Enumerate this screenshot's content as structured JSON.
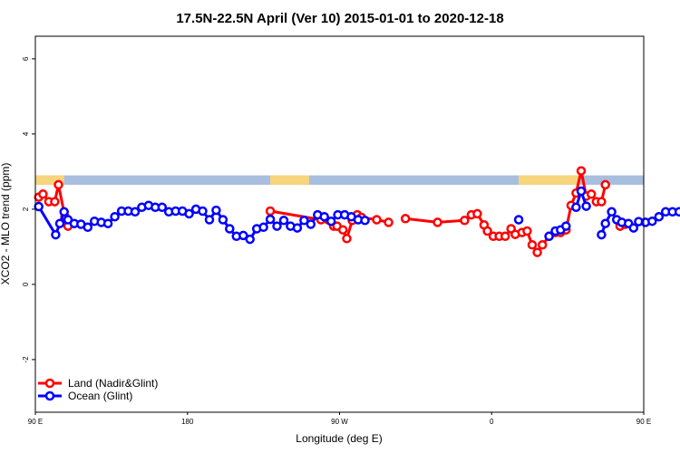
{
  "chart_data": {
    "type": "line",
    "title": "17.5N-22.5N April (Ver 10)   2015-01-01 to 2020-12-18",
    "xlabel": "Longitude (deg E)",
    "ylabel": "XCO2 - MLO trend (ppm)",
    "xlim": [
      90,
      450
    ],
    "ylim": [
      -3.4,
      6.6
    ],
    "x_ticks": [
      {
        "value": 90,
        "label": "90 E"
      },
      {
        "value": 180,
        "label": "180"
      },
      {
        "value": 270,
        "label": "90 W"
      },
      {
        "value": 360,
        "label": "0"
      },
      {
        "value": 450,
        "label": "90 E"
      },
      {
        "value": 540,
        "label": "180"
      }
    ],
    "y_ticks": [
      {
        "value": -2,
        "label": "-2"
      },
      {
        "value": 0,
        "label": "0"
      },
      {
        "value": 2,
        "label": "2"
      },
      {
        "value": 4,
        "label": "4"
      },
      {
        "value": 6,
        "label": "6"
      }
    ],
    "landmask_band": {
      "y_range": [
        2.65,
        2.9
      ],
      "ocean_color": "#a8bedf",
      "land_color": "#f7d57c",
      "land_segments": [
        [
          90,
          107
        ],
        [
          229,
          252
        ],
        [
          376,
          412
        ],
        [
          450,
          467
        ]
      ]
    },
    "series": [
      {
        "name": "Land (Nadir&Glint)",
        "color": "#ff0000",
        "segments": [
          [
            [
              92,
              2.32
            ],
            [
              94.5,
              2.4
            ],
            [
              98,
              2.2
            ],
            [
              101.5,
              2.2
            ],
            [
              103.7,
              2.65
            ],
            [
              107.5,
              1.8
            ],
            [
              109.3,
              1.55
            ]
          ],
          [
            [
              229,
              1.95
            ],
            [
              259,
              1.72
            ],
            [
              266.5,
              1.55
            ],
            [
              268.5,
              1.55
            ],
            [
              272,
              1.45
            ],
            [
              274.3,
              1.22
            ],
            [
              277.5,
              1.7
            ],
            [
              280.5,
              1.85
            ],
            [
              283,
              1.78
            ],
            [
              292,
              1.72
            ],
            [
              299,
              1.65
            ]
          ],
          [
            [
              309,
              1.75
            ],
            [
              328,
              1.65
            ],
            [
              344,
              1.7
            ],
            [
              348,
              1.85
            ],
            [
              351.5,
              1.88
            ],
            [
              355.5,
              1.58
            ],
            [
              357.5,
              1.42
            ],
            [
              361,
              1.28
            ],
            [
              364.5,
              1.28
            ],
            [
              368,
              1.28
            ],
            [
              371.5,
              1.48
            ],
            [
              374,
              1.33
            ],
            [
              378,
              1.38
            ],
            [
              381,
              1.42
            ],
            [
              384,
              1.05
            ],
            [
              387,
              0.85
            ],
            [
              390,
              1.05
            ],
            [
              394,
              1.28
            ],
            [
              397.7,
              1.38
            ],
            [
              400.8,
              1.38
            ],
            [
              404,
              1.45
            ],
            [
              407,
              2.1
            ],
            [
              410,
              2.43
            ],
            [
              413,
              3.02
            ],
            [
              416,
              2.35
            ],
            [
              419,
              2.4
            ],
            [
              422,
              2.2
            ],
            [
              425,
              2.2
            ],
            [
              427.3,
              2.65
            ]
          ],
          [
            [
              436,
              1.55
            ],
            [
              439,
              1.6
            ]
          ]
        ]
      },
      {
        "name": "Ocean (Glint)",
        "color": "#0000ff",
        "segments": [
          [
            [
              92,
              2.07
            ],
            [
              102,
              1.32
            ],
            [
              104.5,
              1.62
            ],
            [
              107,
              1.93
            ],
            [
              109.3,
              1.72
            ],
            [
              113,
              1.62
            ],
            [
              117,
              1.6
            ],
            [
              121,
              1.52
            ],
            [
              125,
              1.68
            ],
            [
              129,
              1.65
            ],
            [
              133,
              1.62
            ],
            [
              137,
              1.8
            ],
            [
              141,
              1.95
            ],
            [
              145,
              1.95
            ],
            [
              149,
              1.93
            ],
            [
              153,
              2.05
            ],
            [
              157,
              2.1
            ],
            [
              161,
              2.05
            ],
            [
              165,
              2.05
            ],
            [
              169,
              1.93
            ],
            [
              173,
              1.95
            ],
            [
              177,
              1.95
            ],
            [
              181,
              1.88
            ],
            [
              185,
              2.0
            ],
            [
              189,
              1.95
            ],
            [
              193,
              1.72
            ],
            [
              197,
              1.97
            ],
            [
              201,
              1.72
            ],
            [
              205,
              1.48
            ],
            [
              209,
              1.28
            ],
            [
              213,
              1.3
            ],
            [
              217,
              1.2
            ],
            [
              221,
              1.48
            ],
            [
              225,
              1.52
            ],
            [
              229,
              1.73
            ],
            [
              233,
              1.55
            ],
            [
              237,
              1.7
            ],
            [
              241,
              1.55
            ],
            [
              245,
              1.5
            ],
            [
              249,
              1.7
            ],
            [
              253,
              1.6
            ],
            [
              257,
              1.85
            ],
            [
              261,
              1.8
            ],
            [
              265,
              1.68
            ],
            [
              269,
              1.85
            ],
            [
              273,
              1.85
            ],
            [
              277,
              1.8
            ],
            [
              281,
              1.72
            ],
            [
              285,
              1.7
            ]
          ],
          [
            [
              394,
              1.28
            ],
            [
              397.7,
              1.42
            ],
            [
              400.8,
              1.45
            ],
            [
              404,
              1.55
            ]
          ],
          [
            [
              376,
              1.72
            ]
          ],
          [
            [
              410,
              2.05
            ],
            [
              413,
              2.48
            ],
            [
              416,
              2.08
            ]
          ],
          [
            [
              425,
              1.32
            ],
            [
              427.3,
              1.62
            ],
            [
              431,
              1.93
            ],
            [
              434,
              1.72
            ],
            [
              437,
              1.65
            ],
            [
              441,
              1.62
            ],
            [
              444,
              1.5
            ],
            [
              447,
              1.67
            ],
            [
              451,
              1.65
            ],
            [
              455,
              1.68
            ],
            [
              459,
              1.8
            ],
            [
              463,
              1.93
            ],
            [
              467,
              1.93
            ],
            [
              471,
              1.93
            ],
            [
              475,
              2.05
            ]
          ]
        ]
      }
    ],
    "legend": {
      "position": "bottom-left",
      "entries": [
        "Land (Nadir&Glint)",
        "Ocean (Glint)"
      ]
    }
  }
}
